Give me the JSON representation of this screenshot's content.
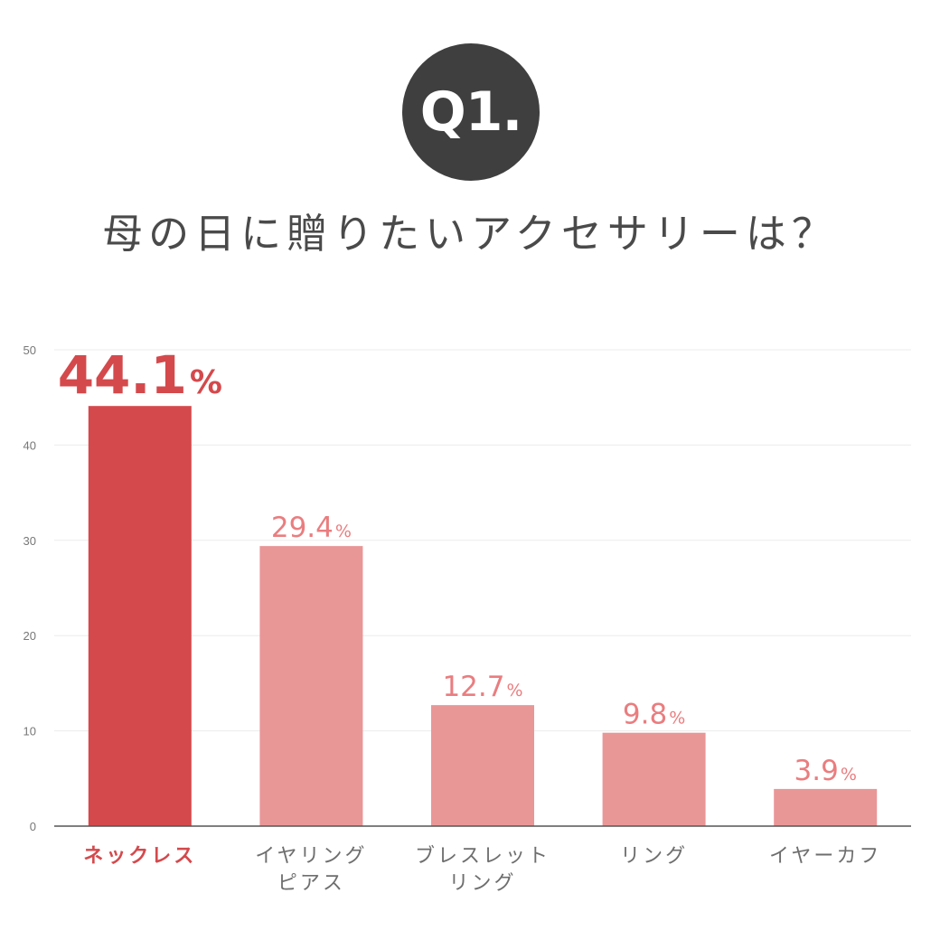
{
  "header": {
    "badge": "Q1.",
    "question": "母の日に贈りたいアクセサリーは？"
  },
  "colors": {
    "highlight": "#d4494c",
    "bar": "#e99697",
    "label": "#ea7d7f",
    "axis_text": "#777777",
    "category_text": "#6e6e6e",
    "grid": "#ececec",
    "baseline": "#555555",
    "badge_bg": "#3f3f3f"
  },
  "chart_data": {
    "type": "bar",
    "title": "",
    "xlabel": "",
    "ylabel": "",
    "ylim": [
      0,
      50
    ],
    "yticks": [
      0,
      10,
      20,
      30,
      40,
      50
    ],
    "grid": true,
    "categories": [
      "ネックレス",
      "イヤリング\nピアス",
      "ブレスレット\nリング",
      "リング",
      "イヤーカフ"
    ],
    "values": [
      44.1,
      29.4,
      12.7,
      9.8,
      3.9
    ],
    "value_labels": [
      "44.1",
      "29.4",
      "12.7",
      "9.8",
      "3.9"
    ],
    "unit": "%",
    "highlight_index": 0
  }
}
